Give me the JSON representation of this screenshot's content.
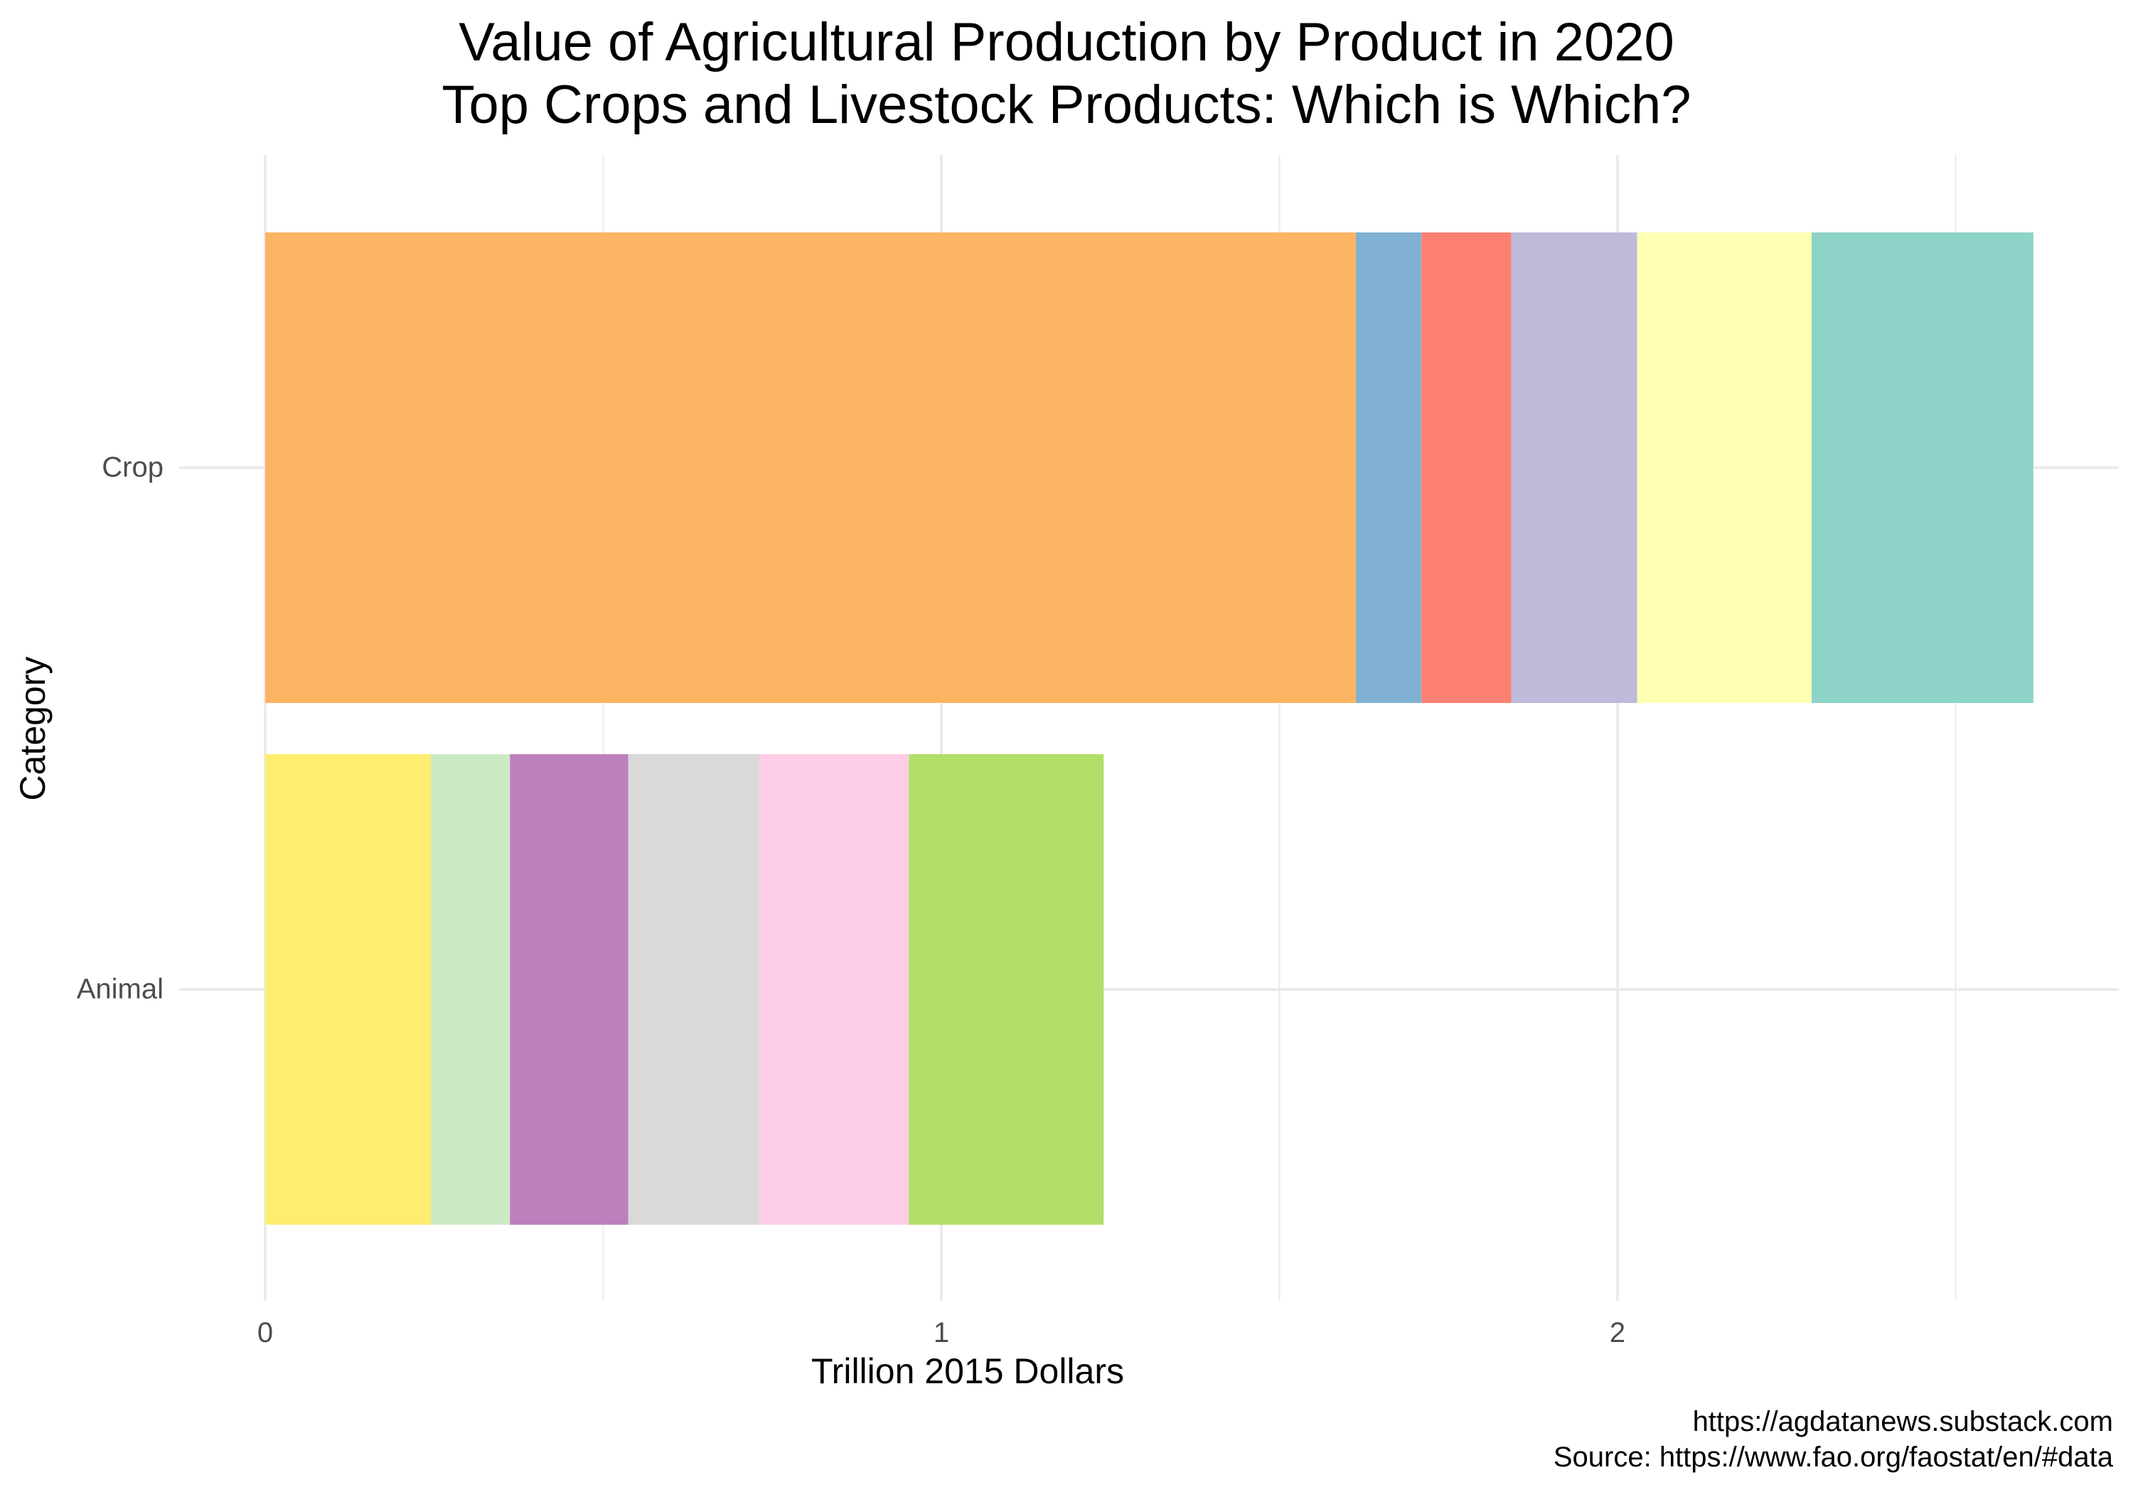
{
  "chart_data": {
    "type": "bar",
    "orientation": "horizontal",
    "stacked": true,
    "title": "Value of Agricultural Production by Product in 2020",
    "subtitle": "Top Crops and Livestock Products: Which is Which?",
    "xlabel": "Trillion 2015 Dollars",
    "ylabel": "Category",
    "xlim": [
      0,
      2.75
    ],
    "x_ticks": [
      "0",
      "1",
      "2"
    ],
    "x_tick_values": [
      0,
      1,
      2
    ],
    "x_minor_grid": [
      0.5,
      1.5,
      2.5
    ],
    "grid": true,
    "legend": "none",
    "categories": [
      "Crop",
      "Animal"
    ],
    "stacks": [
      {
        "category": "Crop",
        "segments": [
          {
            "value": 1.613,
            "color": "#FDB462"
          },
          {
            "value": 0.097,
            "color": "#80B1D3"
          },
          {
            "value": 0.133,
            "color": "#FB8072"
          },
          {
            "value": 0.186,
            "color": "#BEBADA"
          },
          {
            "value": 0.258,
            "color": "#FFFFB3"
          },
          {
            "value": 0.328,
            "color": "#8DD3C7"
          }
        ]
      },
      {
        "category": "Animal",
        "segments": [
          {
            "value": 0.245,
            "color": "#FFED6F"
          },
          {
            "value": 0.117,
            "color": "#CCEBC5"
          },
          {
            "value": 0.175,
            "color": "#BC80BD"
          },
          {
            "value": 0.194,
            "color": "#D9D9D9"
          },
          {
            "value": 0.221,
            "color": "#FCCDE5"
          },
          {
            "value": 0.288,
            "color": "#B3DE69"
          }
        ]
      }
    ]
  },
  "caption": {
    "line1": "https://agdatanews.substack.com",
    "line2": "Source: https://www.fao.org/faostat/en/#data"
  },
  "colors": {
    "grid": "#ebebeb",
    "axis_text": "#4d4d4d",
    "background": "#ffffff"
  }
}
